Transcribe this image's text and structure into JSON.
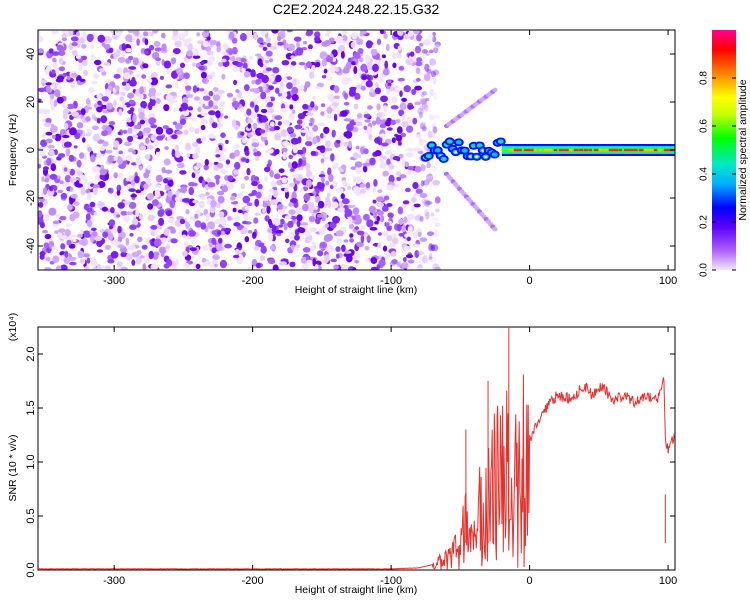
{
  "title": "C2E2.2024.248.22.15.G32",
  "colorbar": {
    "label": "Normalized spectral amplitude",
    "ticks": [
      "0.0",
      "0.2",
      "0.4",
      "0.6",
      "0.8"
    ],
    "tick_values": [
      0.0,
      0.2,
      0.4,
      0.6,
      0.8
    ],
    "range": [
      0,
      1
    ],
    "colors": [
      "#f3e6ff",
      "#b060ff",
      "#5a00ff",
      "#0000ff",
      "#00b0ff",
      "#00e8c8",
      "#00ff00",
      "#c8ff00",
      "#ffff00",
      "#ff8000",
      "#ff0000",
      "#ff0090"
    ]
  },
  "chart_data": [
    {
      "type": "heatmap",
      "title": "C2E2.2024.248.22.15.G32",
      "xlabel": "Height of straight line (km)",
      "ylabel": "Frequency (Hz)",
      "xlim": [
        -355,
        105
      ],
      "ylim": [
        -50,
        50
      ],
      "x_ticks": [
        -300,
        -200,
        -100,
        0,
        100
      ],
      "y_ticks": [
        -40,
        -20,
        0,
        20,
        40
      ],
      "noise_region_x": [
        -355,
        -72
      ],
      "signal_line": {
        "x": [
          -75,
          105
        ],
        "y": 0
      },
      "diverging_branches": [
        {
          "x": [
            -60,
            -25
          ],
          "y": [
            10,
            25
          ]
        },
        {
          "x": [
            -60,
            -25
          ],
          "y": [
            -10,
            -33
          ]
        }
      ]
    },
    {
      "type": "line",
      "xlabel": "Height of straight line (km)",
      "ylabel": "SNR (10 * v/v)",
      "y_multiplier": "(x10⁴)",
      "xlim": [
        -355,
        105
      ],
      "ylim": [
        0,
        2.25
      ],
      "x_ticks": [
        -300,
        -200,
        -100,
        0,
        100
      ],
      "y_ticks": [
        0.0,
        0.5,
        1.0,
        1.5,
        2.0
      ],
      "series": [
        {
          "color": "#e8302c",
          "x": [
            -355,
            -300,
            -250,
            -200,
            -150,
            -100,
            -80,
            -70,
            -60,
            -55,
            -50,
            -45,
            -40,
            -35,
            -30,
            -25,
            -20,
            -15,
            -12,
            -10,
            -5,
            0,
            5,
            10,
            15,
            20,
            25,
            30,
            35,
            40,
            45,
            50,
            55,
            60,
            65,
            70,
            75,
            80,
            85,
            90,
            95,
            97,
            98,
            100,
            105
          ],
          "values": [
            0.01,
            0.01,
            0.01,
            0.01,
            0.01,
            0.01,
            0.02,
            0.05,
            0.12,
            0.2,
            0.3,
            0.55,
            0.5,
            0.6,
            0.72,
            0.85,
            0.9,
            1.0,
            1.05,
            1.1,
            1.15,
            1.2,
            1.35,
            1.45,
            1.55,
            1.62,
            1.6,
            1.58,
            1.65,
            1.7,
            1.62,
            1.7,
            1.66,
            1.58,
            1.6,
            1.62,
            1.55,
            1.6,
            1.62,
            1.55,
            1.65,
            1.8,
            1.2,
            1.1,
            1.25
          ],
          "spikes": [
            {
              "x": -15,
              "y": 2.25
            },
            {
              "x": -30,
              "y": 1.75
            },
            {
              "x": -46,
              "y": 1.3
            },
            {
              "x": 98,
              "y": 0.7
            }
          ]
        }
      ]
    }
  ]
}
